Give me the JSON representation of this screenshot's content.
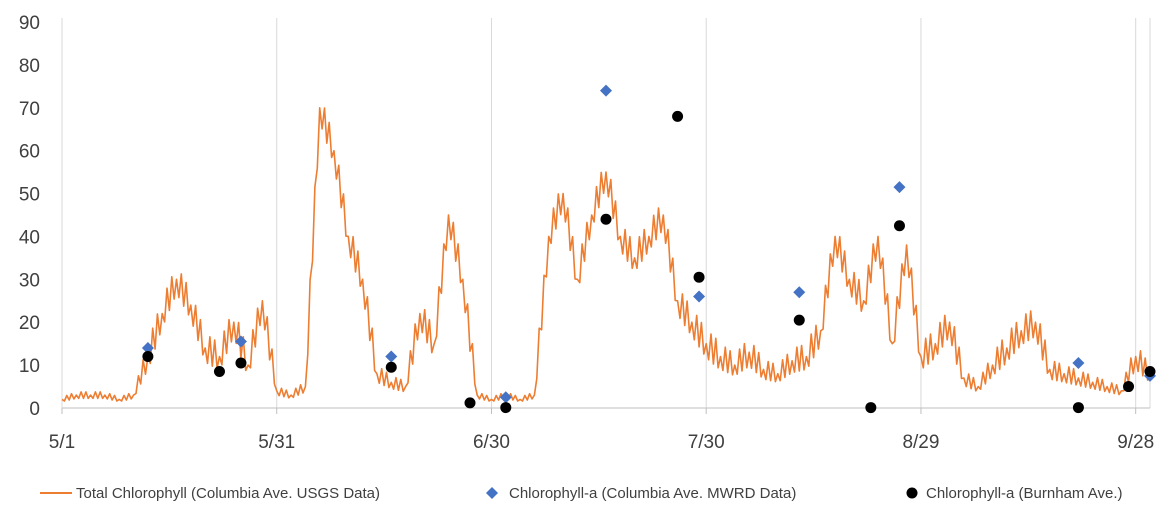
{
  "chart_data": {
    "type": "line",
    "title": "",
    "xlabel": "",
    "ylabel": "",
    "ylim": [
      0,
      90
    ],
    "y_ticks": [
      0,
      10,
      20,
      30,
      40,
      50,
      60,
      70,
      80,
      90
    ],
    "x_ticks": [
      "5/1",
      "5/31",
      "6/30",
      "7/30",
      "8/29",
      "9/28"
    ],
    "grid": "vertical",
    "legend": "bottom",
    "series": [
      {
        "name": "Total Chlorophyll (Columbia Ave. USGS Data)",
        "kind": "line",
        "color": "#ED7D31",
        "x": [
          "5/1",
          "5/3",
          "5/5",
          "5/7",
          "5/9",
          "5/11",
          "5/13",
          "5/15",
          "5/17",
          "5/19",
          "5/21",
          "5/23",
          "5/25",
          "5/27",
          "5/29",
          "5/31",
          "6/2",
          "6/4",
          "6/6",
          "6/8",
          "6/10",
          "6/12",
          "6/14",
          "6/16",
          "6/18",
          "6/20",
          "6/22",
          "6/24",
          "6/26",
          "6/28",
          "6/30",
          "7/2",
          "7/4",
          "7/6",
          "7/8",
          "7/10",
          "7/12",
          "7/14",
          "7/16",
          "7/18",
          "7/20",
          "7/22",
          "7/24",
          "7/26",
          "7/28",
          "7/30",
          "8/1",
          "8/3",
          "8/5",
          "8/7",
          "8/9",
          "8/11",
          "8/13",
          "8/15",
          "8/17",
          "8/19",
          "8/21",
          "8/23",
          "8/25",
          "8/27",
          "8/29",
          "8/31",
          "9/2",
          "9/4",
          "9/6",
          "9/8",
          "9/10",
          "9/12",
          "9/14",
          "9/16",
          "9/18",
          "9/20",
          "9/22",
          "9/24",
          "9/26",
          "9/28",
          "9/30"
        ],
        "y": [
          2,
          3,
          3,
          3,
          2,
          3,
          12,
          22,
          30,
          24,
          14,
          12,
          20,
          10,
          25,
          4,
          3,
          5,
          70,
          60,
          40,
          30,
          8,
          6,
          5,
          22,
          15,
          45,
          30,
          3,
          2,
          3,
          2,
          3,
          40,
          50,
          30,
          45,
          55,
          40,
          35,
          40,
          45,
          25,
          20,
          15,
          12,
          10,
          13,
          9,
          8,
          11,
          12,
          18,
          40,
          30,
          25,
          40,
          15,
          38,
          12,
          15,
          20,
          7,
          5,
          10,
          14,
          18,
          20,
          9,
          8,
          7,
          6,
          5,
          4,
          12,
          8
        ]
      },
      {
        "name": "Chlorophyll-a (Columbia Ave. MWRD Data)",
        "kind": "scatter",
        "marker": "diamond",
        "color": "#4472C4",
        "points": [
          {
            "x": "5/13",
            "y": 14
          },
          {
            "x": "5/26",
            "y": 15.5
          },
          {
            "x": "6/16",
            "y": 12
          },
          {
            "x": "7/2",
            "y": 2.5
          },
          {
            "x": "7/16",
            "y": 74
          },
          {
            "x": "7/29",
            "y": 26
          },
          {
            "x": "8/12",
            "y": 27
          },
          {
            "x": "8/26",
            "y": 51.5
          },
          {
            "x": "9/20",
            "y": 10.5
          },
          {
            "x": "9/30",
            "y": 7.5
          }
        ]
      },
      {
        "name": "Chlorophyll-a (Burnham Ave.)",
        "kind": "scatter",
        "marker": "circle",
        "color": "#000000",
        "points": [
          {
            "x": "5/13",
            "y": 12
          },
          {
            "x": "5/23",
            "y": 8.5
          },
          {
            "x": "5/26",
            "y": 10.5
          },
          {
            "x": "6/16",
            "y": 9.5
          },
          {
            "x": "6/27",
            "y": 1.2
          },
          {
            "x": "7/2",
            "y": 0.1
          },
          {
            "x": "7/16",
            "y": 44
          },
          {
            "x": "7/26",
            "y": 68
          },
          {
            "x": "7/29",
            "y": 30.5
          },
          {
            "x": "8/12",
            "y": 20.5
          },
          {
            "x": "8/22",
            "y": 0.1
          },
          {
            "x": "8/26",
            "y": 42.5
          },
          {
            "x": "9/20",
            "y": 0.1
          },
          {
            "x": "9/27",
            "y": 5
          },
          {
            "x": "9/30",
            "y": 8.5
          }
        ]
      }
    ]
  }
}
